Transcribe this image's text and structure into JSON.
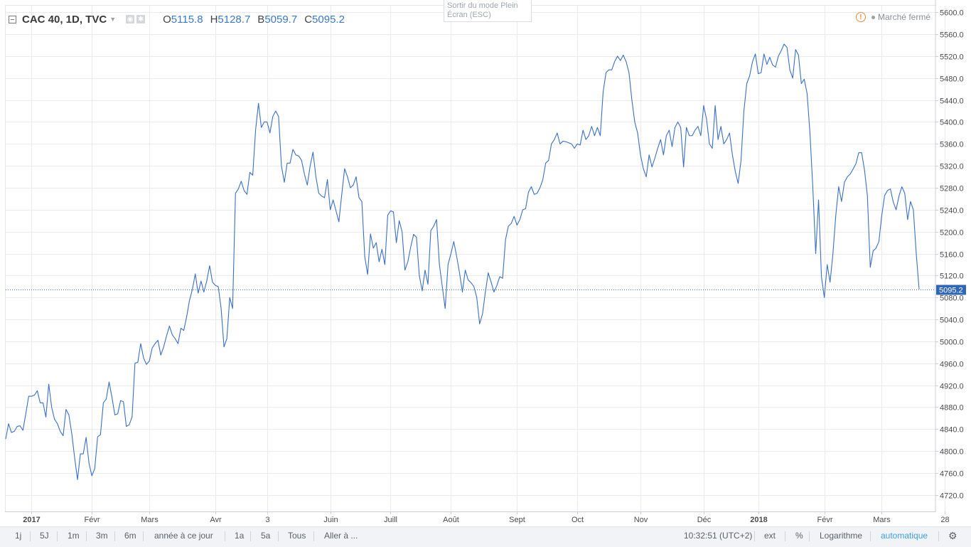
{
  "legend": {
    "symbol": "CAC 40, 1D, TVC",
    "o_key": "O",
    "o_val": "5115.8",
    "h_key": "H",
    "h_val": "5128.7",
    "b_key": "B",
    "b_val": "5059.7",
    "c_key": "C",
    "c_val": "5095.2"
  },
  "tooltip": {
    "line1": "Sortir du mode Plein",
    "line2": "Écran (ESC)"
  },
  "market_status": "Marché fermé",
  "toolbar": {
    "timeframes": [
      "1j",
      "5J",
      "1m",
      "3m",
      "6m",
      "année à ce jour",
      "1a",
      "5a",
      "Tous"
    ],
    "goto": "Aller à ...",
    "time": "10:32:51 (UTC+2)",
    "ext": "ext",
    "pct": "%",
    "log": "Logarithme",
    "auto": "automatique"
  },
  "colors": {
    "line": "#3a6fc4",
    "price_label_bg": "#2f66b7",
    "grid": "#e8ecf0",
    "warn": "#f08a3a"
  },
  "chart_data": {
    "type": "line",
    "title": "CAC 40, 1D, TVC",
    "y_ticks": [
      4720,
      4760,
      4800,
      4840,
      4880,
      4920,
      4960,
      5000,
      5040,
      5080,
      5120,
      5160,
      5200,
      5240,
      5280,
      5320,
      5360,
      5400,
      5440,
      5480,
      5520,
      5560,
      5600
    ],
    "y_tick_labels": [
      "4720.0",
      "4760.0",
      "4800.0",
      "4840.0",
      "4880.0",
      "4920.0",
      "4960.0",
      "5000.0",
      "5040.0",
      "5080.0",
      "5120.0",
      "5160.0",
      "5200.0",
      "5240.0",
      "5280.0",
      "5320.0",
      "5360.0",
      "5400.0",
      "5440.0",
      "5480.0",
      "5520.0",
      "5560.0",
      "5600.0"
    ],
    "ylim": [
      4690,
      5612
    ],
    "x_ticks": [
      {
        "label": "2017",
        "idx": 9,
        "bold": true
      },
      {
        "label": "Févr",
        "idx": 30,
        "bold": false
      },
      {
        "label": "Mars",
        "idx": 50,
        "bold": false
      },
      {
        "label": "Avr",
        "idx": 73,
        "bold": false
      },
      {
        "label": "3",
        "idx": 91,
        "bold": false
      },
      {
        "label": "Juin",
        "idx": 113,
        "bold": false
      },
      {
        "label": "Juill",
        "idx": 134,
        "bold": false
      },
      {
        "label": "Août",
        "idx": 155,
        "bold": false
      },
      {
        "label": "Sept",
        "idx": 178,
        "bold": false
      },
      {
        "label": "Oct",
        "idx": 199,
        "bold": false
      },
      {
        "label": "Nov",
        "idx": 221,
        "bold": false
      },
      {
        "label": "Déc",
        "idx": 243,
        "bold": false
      },
      {
        "label": "2018",
        "idx": 262,
        "bold": true
      },
      {
        "label": "Févr",
        "idx": 285,
        "bold": false
      },
      {
        "label": "Mars",
        "idx": 305,
        "bold": false
      },
      {
        "label": "28",
        "idx": 327,
        "bold": false
      }
    ],
    "last_value": 5095.2,
    "last_value_label": "5095.2",
    "values": [
      4822,
      4850,
      4834,
      4836,
      4845,
      4846,
      4838,
      4868,
      4900,
      4900,
      4902,
      4910,
      4888,
      4888,
      4862,
      4922,
      4880,
      4858,
      4850,
      4836,
      4828,
      4876,
      4866,
      4832,
      4788,
      4748,
      4795,
      4795,
      4825,
      4778,
      4755,
      4768,
      4826,
      4830,
      4888,
      4895,
      4926,
      4898,
      4866,
      4868,
      4892,
      4890,
      4845,
      4848,
      4862,
      4960,
      4962,
      4996,
      4970,
      4958,
      4964,
      4988,
      4996,
      5002,
      4975,
      4990,
      5010,
      5028,
      5012,
      5005,
      4996,
      5024,
      5020,
      5045,
      5075,
      5095,
      5123,
      5088,
      5110,
      5090,
      5110,
      5138,
      5108,
      5102,
      5100,
      5060,
      4990,
      5005,
      5080,
      5060,
      5270,
      5278,
      5292,
      5275,
      5268,
      5308,
      5303,
      5385,
      5434,
      5390,
      5400,
      5400,
      5380,
      5410,
      5420,
      5410,
      5320,
      5290,
      5325,
      5325,
      5350,
      5340,
      5338,
      5330,
      5305,
      5285,
      5320,
      5345,
      5300,
      5270,
      5265,
      5262,
      5295,
      5240,
      5258,
      5238,
      5218,
      5268,
      5315,
      5300,
      5280,
      5285,
      5300,
      5262,
      5255,
      5155,
      5122,
      5196,
      5170,
      5180,
      5145,
      5168,
      5140,
      5230,
      5238,
      5236,
      5180,
      5220,
      5200,
      5130,
      5145,
      5172,
      5195,
      5190,
      5120,
      5092,
      5130,
      5104,
      5202,
      5210,
      5222,
      5140,
      5100,
      5060,
      5140,
      5160,
      5182,
      5155,
      5125,
      5090,
      5130,
      5112,
      5107,
      5100,
      5080,
      5032,
      5050,
      5090,
      5125,
      5108,
      5090,
      5102,
      5118,
      5115,
      5185,
      5210,
      5215,
      5228,
      5212,
      5222,
      5240,
      5242,
      5272,
      5282,
      5268,
      5270,
      5280,
      5295,
      5325,
      5330,
      5360,
      5368,
      5380,
      5360,
      5365,
      5364,
      5362,
      5360,
      5352,
      5360,
      5358,
      5385,
      5368,
      5375,
      5392,
      5375,
      5390,
      5375,
      5455,
      5490,
      5495,
      5495,
      5510,
      5520,
      5512,
      5522,
      5510,
      5490,
      5440,
      5400,
      5380,
      5340,
      5315,
      5300,
      5340,
      5318,
      5334,
      5352,
      5368,
      5340,
      5375,
      5385,
      5355,
      5390,
      5400,
      5390,
      5318,
      5390,
      5375,
      5375,
      5385,
      5392,
      5375,
      5430,
      5405,
      5360,
      5352,
      5430,
      5368,
      5392,
      5360,
      5368,
      5380,
      5340,
      5310,
      5288,
      5330,
      5420,
      5470,
      5484,
      5510,
      5524,
      5488,
      5490,
      5524,
      5505,
      5518,
      5504,
      5500,
      5520,
      5530,
      5542,
      5536,
      5495,
      5480,
      5532,
      5522,
      5470,
      5478,
      5452,
      5380,
      5280,
      5160,
      5258,
      5118,
      5080,
      5140,
      5108,
      5160,
      5230,
      5282,
      5255,
      5290,
      5300,
      5305,
      5314,
      5324,
      5344,
      5344,
      5312,
      5265,
      5135,
      5165,
      5170,
      5182,
      5230,
      5266,
      5275,
      5278,
      5254,
      5240,
      5265,
      5282,
      5270,
      5222,
      5255,
      5240,
      5160,
      5095
    ]
  }
}
